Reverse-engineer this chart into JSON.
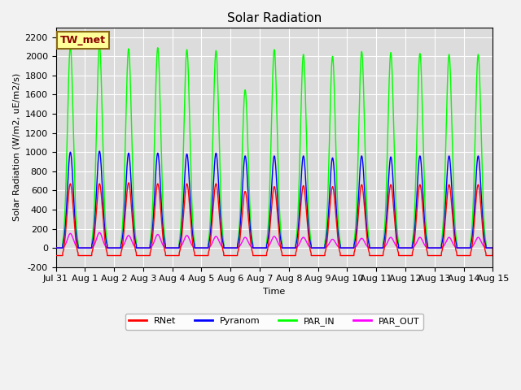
{
  "title": "Solar Radiation",
  "ylabel": "Solar Radiation (W/m2, uE/m2/s)",
  "xlabel": "Time",
  "ylim": [
    -200,
    2300
  ],
  "yticks": [
    -200,
    0,
    200,
    400,
    600,
    800,
    1000,
    1200,
    1400,
    1600,
    1800,
    2000,
    2200
  ],
  "xtick_labels": [
    "Jul 31",
    "Aug 1",
    "Aug 2",
    "Aug 3",
    "Aug 4",
    "Aug 5",
    "Aug 6",
    "Aug 7",
    "Aug 8",
    "Aug 9",
    "Aug 10",
    "Aug 11",
    "Aug 12",
    "Aug 13",
    "Aug 14",
    "Aug 15"
  ],
  "station_label": "TW_met",
  "station_label_color": "#8B0000",
  "station_box_facecolor": "#FFFF99",
  "station_box_edgecolor": "#8B6914",
  "colors": {
    "RNet": "#FF0000",
    "Pyranom": "#0000FF",
    "PAR_IN": "#00FF00",
    "PAR_OUT": "#FF00FF"
  },
  "peaks_PAR_IN": [
    2100,
    2120,
    2080,
    2090,
    2070,
    2060,
    1650,
    2070,
    2020,
    2000,
    2050,
    2040,
    2030,
    2020,
    2020
  ],
  "peaks_Pyranom": [
    1000,
    1010,
    990,
    990,
    980,
    990,
    960,
    960,
    960,
    940,
    960,
    950,
    960,
    960,
    960
  ],
  "peaks_RNet": [
    670,
    670,
    680,
    670,
    670,
    670,
    590,
    640,
    650,
    640,
    660,
    660,
    660,
    660,
    660
  ],
  "peaks_PAR_OUT": [
    150,
    160,
    130,
    140,
    130,
    120,
    110,
    120,
    110,
    90,
    100,
    110,
    110,
    110,
    110
  ],
  "night_min_RNet": -80,
  "background_color": "#DCDCDC",
  "grid_color": "#FFFFFF",
  "fig_facecolor": "#F2F2F2",
  "title_fontsize": 11,
  "axis_label_fontsize": 8,
  "tick_fontsize": 8
}
